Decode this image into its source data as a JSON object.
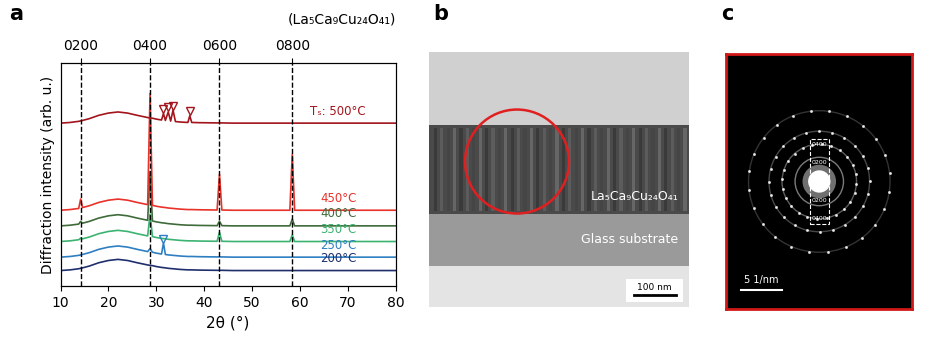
{
  "panel_labels": [
    "a",
    "b",
    "c"
  ],
  "chart_data": {
    "type": "line",
    "xlabel": "2θ (°)",
    "ylabel": "Diffraction intensity (arb. u.)",
    "annotation": "(La₅Ca₉Cu₂₄O₄₁)",
    "x": [
      10,
      12,
      13.8,
      14.2,
      14.6,
      16,
      18,
      20,
      22,
      24,
      26,
      28.2,
      28.7,
      29.2,
      30,
      31.1,
      31.5,
      31.9,
      32.5,
      33.0,
      33.5,
      34.0,
      35,
      36.6,
      37.0,
      37.4,
      39,
      42.7,
      43.2,
      43.7,
      46,
      50,
      54,
      57.9,
      58.4,
      58.9,
      62,
      66,
      70,
      75,
      80
    ],
    "series": [
      {
        "name": "200°C",
        "color": "#1f2f6e",
        "values": [
          7,
          7.3,
          7.8,
          8,
          8.2,
          9,
          10.5,
          11.5,
          12,
          11.5,
          10.5,
          9.5,
          9.3,
          9.2,
          8.8,
          8.4,
          8.3,
          8.2,
          8,
          7.9,
          7.8,
          7.7,
          7.5,
          7.3,
          7.3,
          7.3,
          7.2,
          7.1,
          7.1,
          7.1,
          7,
          7,
          7,
          7,
          7,
          7,
          7,
          7,
          7,
          7,
          7
        ]
      },
      {
        "name": "250°C",
        "color": "#2e7fc2",
        "values": [
          13,
          13.3,
          13.8,
          14,
          14.2,
          15,
          16.5,
          17.5,
          18,
          17.5,
          16.5,
          15.5,
          16.8,
          15.2,
          14.8,
          14.4,
          19.3,
          14.2,
          14,
          13.9,
          13.8,
          13.7,
          13.5,
          13.3,
          13.3,
          13.3,
          13.2,
          13.1,
          13.1,
          13.1,
          13,
          13,
          13,
          13,
          13,
          13,
          13,
          13,
          13,
          13,
          13
        ]
      },
      {
        "name": "350°C",
        "color": "#3cb371",
        "values": [
          20,
          20.3,
          20.8,
          21.5,
          21.2,
          22,
          23.5,
          24.5,
          25,
          24.5,
          23.5,
          22.5,
          32.3,
          22.2,
          21.8,
          21.4,
          21.3,
          21.2,
          21,
          20.9,
          20.8,
          20.7,
          20.5,
          20.3,
          20.3,
          20.3,
          20.2,
          20.1,
          24.1,
          20.1,
          20,
          20,
          20,
          20,
          23,
          20,
          20,
          20,
          20,
          20,
          20
        ]
      },
      {
        "name": "400°C",
        "color": "#3f6b3a",
        "values": [
          27,
          27.3,
          27.8,
          29,
          28.2,
          29,
          30.5,
          31.5,
          32,
          31.5,
          30.5,
          29.5,
          51.3,
          29.2,
          28.8,
          28.4,
          28.3,
          28.2,
          28,
          27.9,
          27.8,
          27.7,
          27.5,
          27.3,
          27.3,
          27.3,
          27.2,
          27.1,
          29.1,
          27.1,
          27,
          27,
          27,
          27,
          30,
          27,
          27,
          27,
          27,
          27,
          27
        ]
      },
      {
        "name": "450°C",
        "color": "#e8322a",
        "values": [
          34,
          34.3,
          34.8,
          39,
          35.2,
          36,
          37.5,
          38.5,
          39,
          38.5,
          37.5,
          36.5,
          86.3,
          36.2,
          35.8,
          35.4,
          35.3,
          35.2,
          35,
          34.9,
          34.8,
          34.7,
          34.5,
          34.3,
          34.3,
          34.3,
          34.2,
          34.1,
          50.1,
          34.1,
          34,
          34,
          34,
          34,
          59,
          34,
          34,
          34,
          34,
          34,
          34
        ]
      },
      {
        "name": "Tₛ: 500°C",
        "color": "#a3141c",
        "values": [
          73,
          73.3,
          73.8,
          74,
          74.2,
          75,
          76.5,
          77.5,
          78,
          77.5,
          76.5,
          75.5,
          75.3,
          75.2,
          74.8,
          74.4,
          77.3,
          74.2,
          78,
          73.9,
          78.8,
          73.7,
          73.5,
          73.3,
          76.3,
          73.3,
          73.2,
          73.1,
          73.1,
          73.1,
          73,
          73,
          73,
          73,
          73,
          73,
          73,
          73,
          73,
          73,
          73
        ]
      }
    ],
    "impurity_peaks": [
      {
        "series": "250°C",
        "x": [
          31.5
        ]
      },
      {
        "series": "Tₛ: 500°C",
        "x": [
          31.5,
          32.5,
          33.5,
          37.0
        ]
      }
    ],
    "xlim": [
      10,
      80
    ],
    "xticks": [
      10,
      20,
      30,
      40,
      50,
      60,
      70,
      80
    ],
    "x2ticks": [
      {
        "value": 14.2,
        "label": "0200"
      },
      {
        "value": 28.7,
        "label": "0400"
      },
      {
        "value": 43.2,
        "label": "0600"
      },
      {
        "value": 58.4,
        "label": "0800"
      }
    ],
    "ylim": [
      0,
      100
    ],
    "yticks": [],
    "tick_labels": "x",
    "grid": false
  },
  "image_b": {
    "film_label": "La₅Ca₉Cu₂₄O₄₁",
    "substrate_label": "Glass substrate",
    "scale_bar": "100 nm"
  },
  "image_c": {
    "spot_labels": [
      "0400",
      "0200",
      "0200",
      "0400"
    ],
    "scale_bar": "5 1/nm"
  }
}
